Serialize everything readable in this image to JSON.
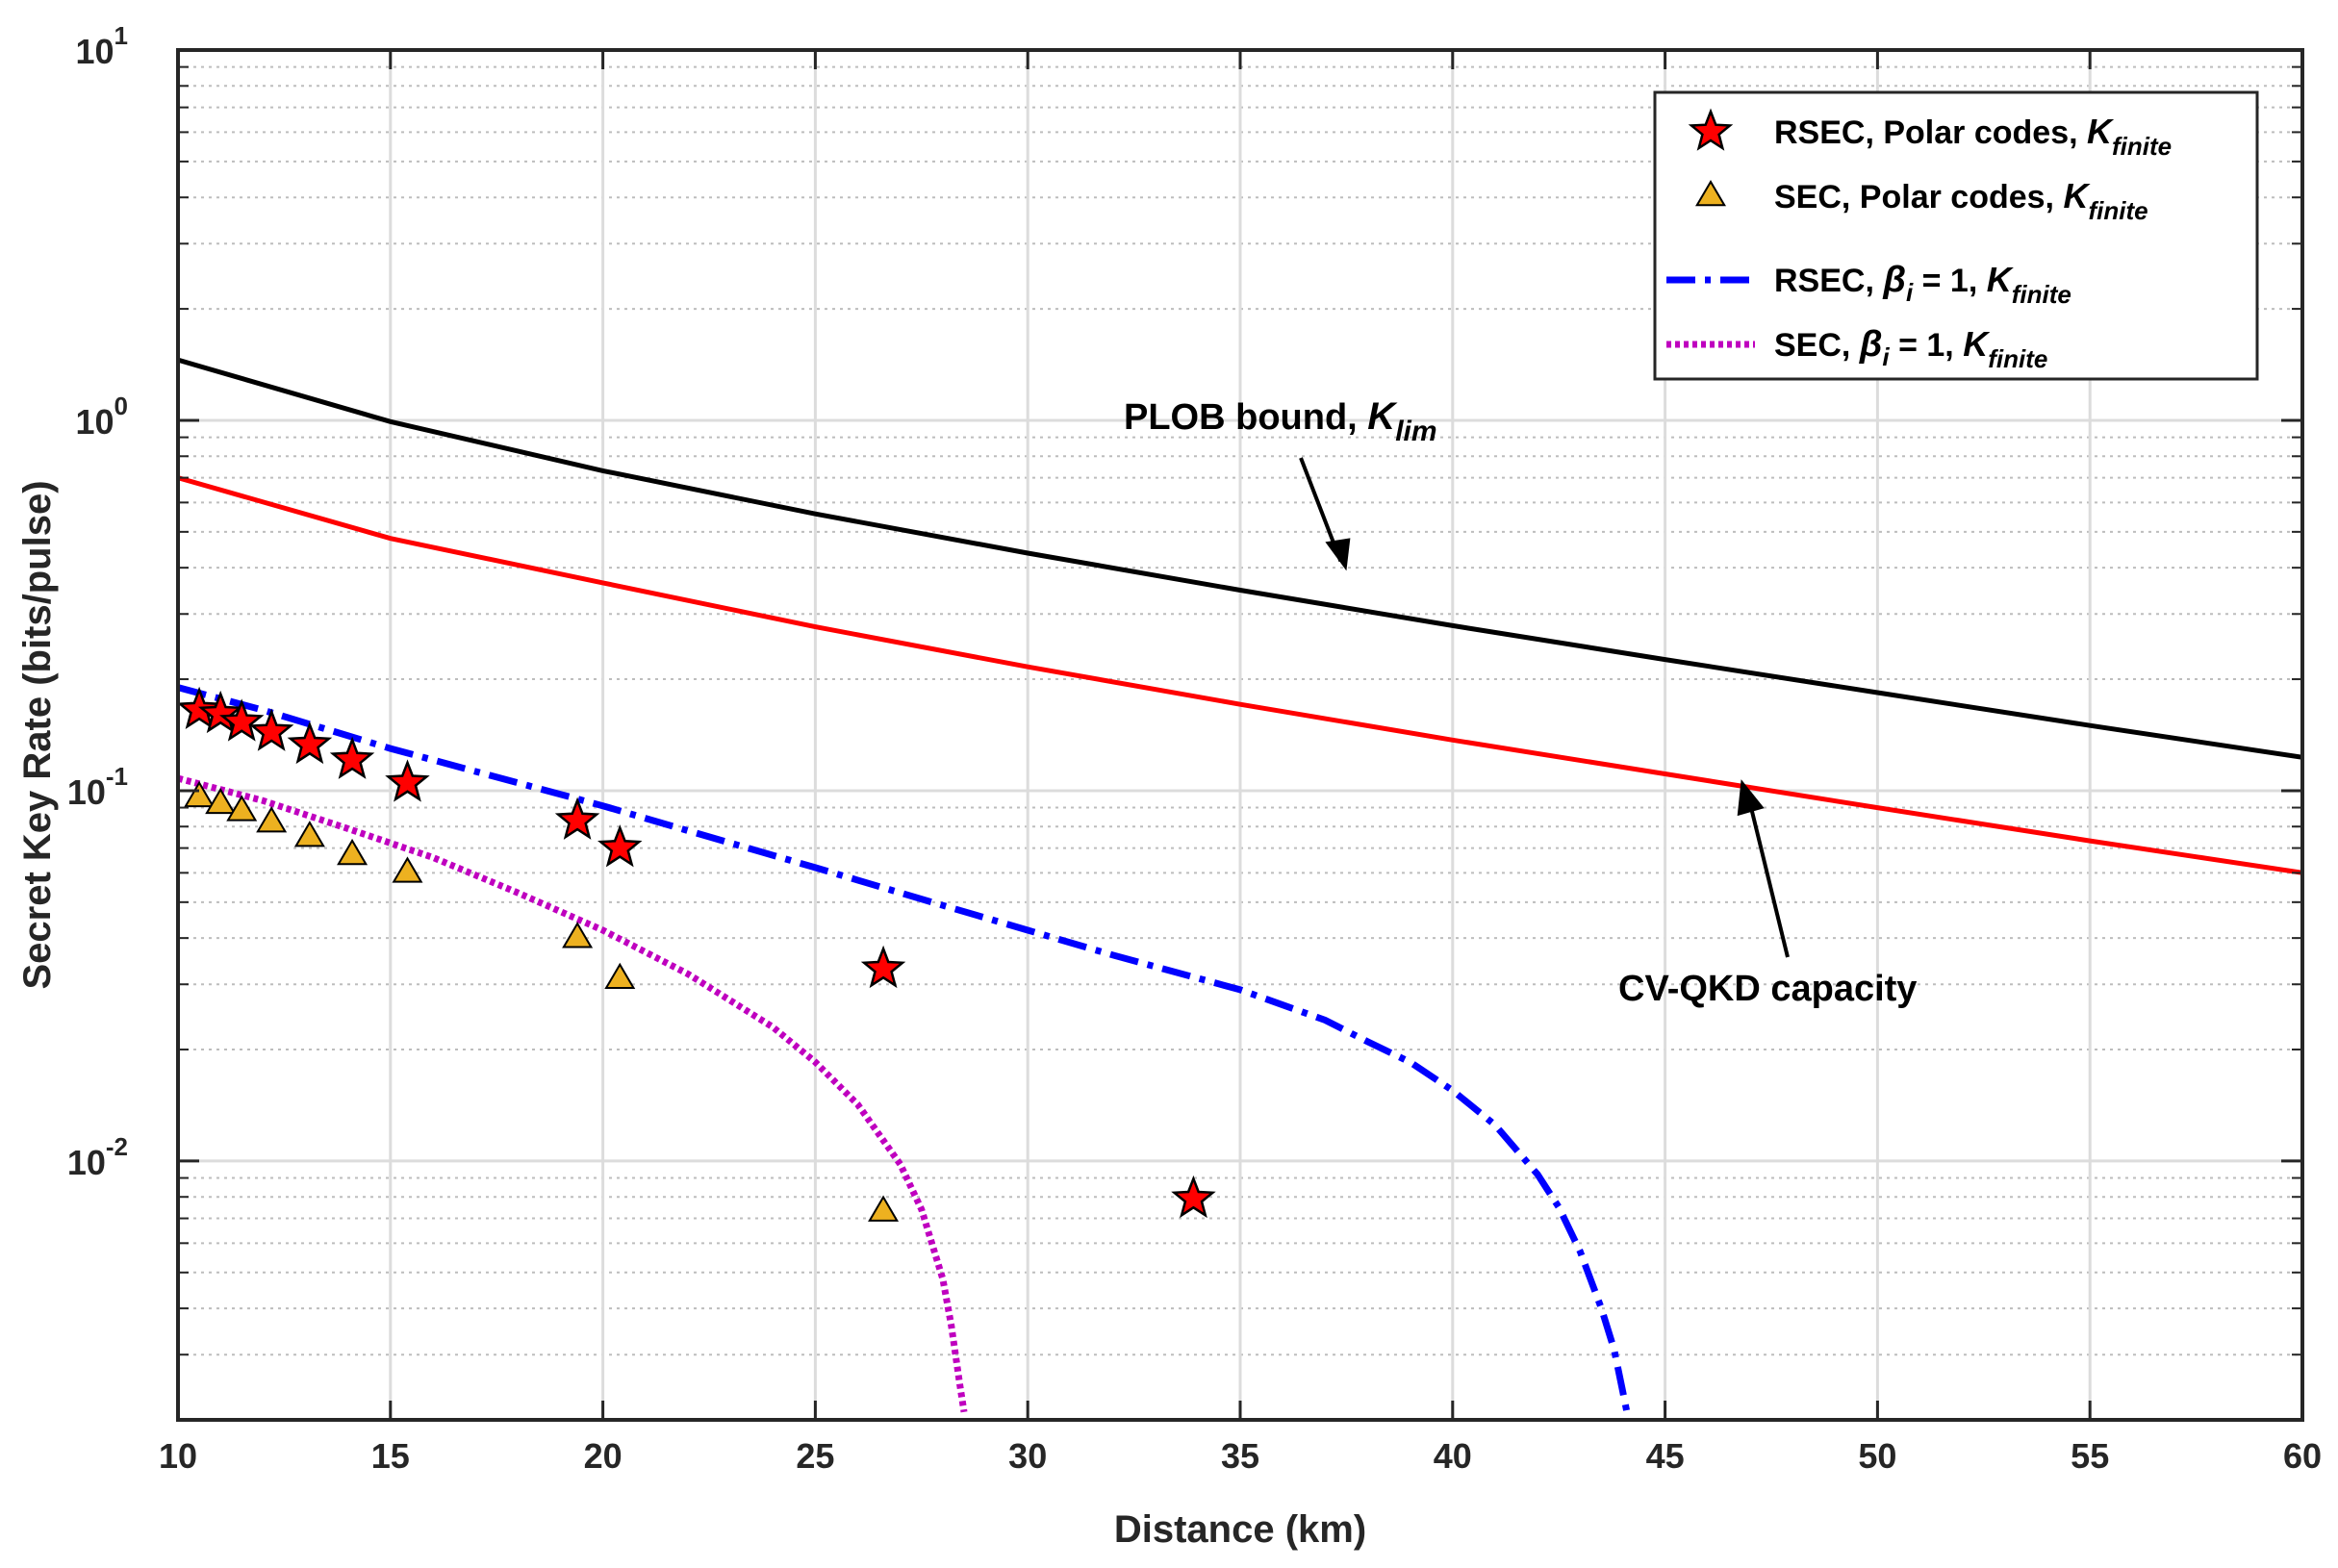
{
  "chart_data": {
    "type": "line",
    "xlabel": "Distance (km)",
    "ylabel": "Secret Key Rate (bits/pulse)",
    "xlim": [
      10,
      60
    ],
    "ylim": [
      0.002,
      10
    ],
    "yscale": "log",
    "grid": true,
    "x_ticks": [
      "10",
      "15",
      "20",
      "25",
      "30",
      "35",
      "40",
      "45",
      "50",
      "55",
      "60"
    ],
    "y_ticks": [
      {
        "base": "10",
        "exp": "1"
      },
      {
        "base": "10",
        "exp": "0"
      },
      {
        "base": "10",
        "exp": "-1"
      },
      {
        "base": "10",
        "exp": "-2"
      }
    ],
    "legend_position": "top-right",
    "legend": [
      {
        "pre": "RSEC, Polar codes, ",
        "sym": "K",
        "sub": "finite"
      },
      {
        "pre": "SEC, Polar codes, ",
        "sym": "K",
        "sub": "finite"
      },
      {
        "pre": "RSEC,  ",
        "beta": "β",
        "beta_sub": "i",
        "mid": " = 1, ",
        "sym": "K",
        "sub": "finite"
      },
      {
        "pre": "SEC,  ",
        "beta": "β",
        "beta_sub": "i",
        "mid": " = 1, ",
        "sym": "K",
        "sub": "finite"
      }
    ],
    "annotations": [
      {
        "text": "PLOB bound,  ",
        "sym": "K",
        "sub": "lim",
        "points_to_x": 37.5
      },
      {
        "text": "CV-QKD capacity",
        "points_to_x": 46.7
      }
    ],
    "series": [
      {
        "name": "PLOB bound",
        "style": "solid",
        "color": "#000000",
        "x": [
          10,
          15,
          20,
          25,
          30,
          35,
          40,
          45,
          50,
          55,
          60
        ],
        "y": [
          1.456,
          0.992,
          0.731,
          0.559,
          0.438,
          0.348,
          0.279,
          0.226,
          0.184,
          0.15,
          0.123
        ]
      },
      {
        "name": "CV-QKD capacity",
        "style": "solid",
        "color": "#ff0000",
        "x": [
          10,
          15,
          20,
          25,
          30,
          35,
          40,
          45,
          50,
          55,
          60
        ],
        "y": [
          0.7,
          0.48,
          0.364,
          0.277,
          0.216,
          0.171,
          0.137,
          0.111,
          0.09,
          0.0732,
          0.06
        ]
      },
      {
        "name": "RSEC, beta_i = 1, K_finite",
        "style": "dashdot",
        "color": "#0000ff",
        "x": [
          10,
          12,
          15,
          18,
          20,
          22,
          25,
          28,
          30,
          32,
          35,
          37,
          38,
          39,
          40,
          41,
          42,
          42.5,
          43,
          43.5,
          43.8,
          44.0,
          44.1
        ],
        "y": [
          0.19,
          0.165,
          0.13,
          0.105,
          0.091,
          0.078,
          0.062,
          0.049,
          0.042,
          0.036,
          0.029,
          0.024,
          0.021,
          0.0185,
          0.0155,
          0.0125,
          0.0092,
          0.0075,
          0.0057,
          0.004,
          0.0031,
          0.0024,
          0.0021
        ]
      },
      {
        "name": "SEC, beta_i = 1, K_finite",
        "style": "dotted",
        "color": "#bf00bf",
        "x": [
          10,
          12,
          14,
          16,
          18,
          20,
          22,
          24,
          25,
          26,
          27,
          27.5,
          28,
          28.2,
          28.4,
          28.5
        ],
        "y": [
          0.108,
          0.094,
          0.079,
          0.066,
          0.053,
          0.042,
          0.032,
          0.023,
          0.0185,
          0.0142,
          0.0098,
          0.0074,
          0.0048,
          0.0036,
          0.0025,
          0.0021
        ]
      },
      {
        "name": "RSEC, Polar codes, K_finite",
        "style": "marker",
        "marker": "star",
        "color": "#ff0000",
        "x": [
          10.5,
          11.0,
          11.5,
          12.2,
          13.1,
          14.1,
          15.4,
          19.4,
          20.4,
          26.6,
          33.9
        ],
        "y": [
          0.165,
          0.161,
          0.153,
          0.144,
          0.133,
          0.121,
          0.105,
          0.083,
          0.07,
          0.033,
          0.0079
        ]
      },
      {
        "name": "SEC, Polar codes, K_finite",
        "style": "marker",
        "marker": "triangle",
        "color": "#edb120",
        "x": [
          10.5,
          11.0,
          11.5,
          12.2,
          13.1,
          14.1,
          15.4,
          19.4,
          20.4,
          26.6
        ],
        "y": [
          0.096,
          0.092,
          0.088,
          0.082,
          0.075,
          0.067,
          0.06,
          0.04,
          0.031,
          0.0073
        ]
      }
    ]
  }
}
